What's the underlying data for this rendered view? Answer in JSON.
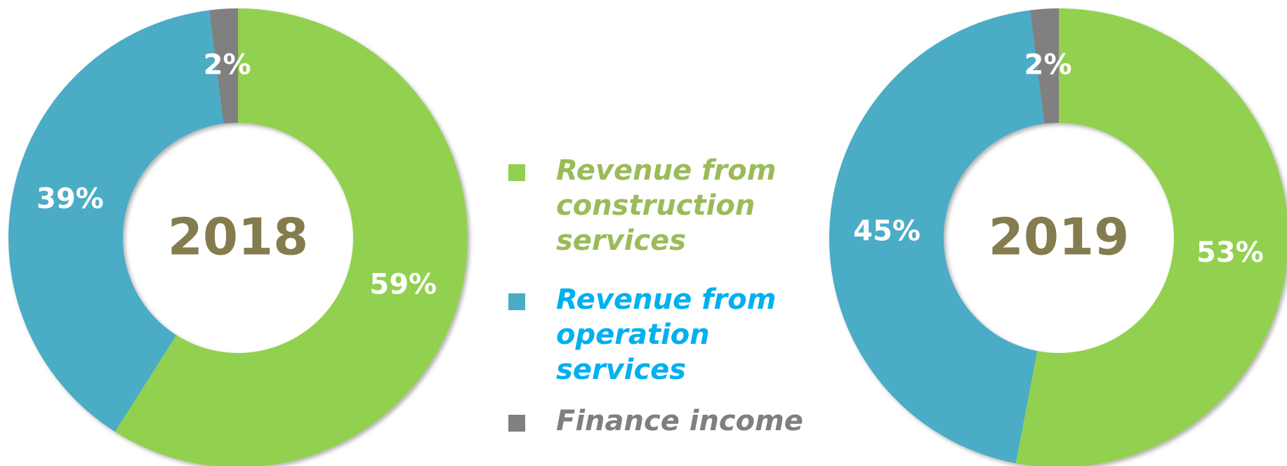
{
  "chart_data": [
    {
      "type": "pie",
      "title": "2018",
      "categories": [
        "Revenue from construction services",
        "Revenue from operation services",
        "Finance income"
      ],
      "colors": [
        "#92d050",
        "#4bacc6",
        "#808080"
      ],
      "legend_text_colors": [
        "#9bbb59",
        "#00b0f0",
        "#7f7f7f"
      ],
      "values": [
        59,
        39,
        2
      ],
      "value_labels": [
        "59%",
        "39%",
        "2%"
      ]
    },
    {
      "type": "pie",
      "title": "2019",
      "values": [
        53,
        45,
        2
      ],
      "value_labels": [
        "53%",
        "45%",
        "2%"
      ]
    }
  ]
}
